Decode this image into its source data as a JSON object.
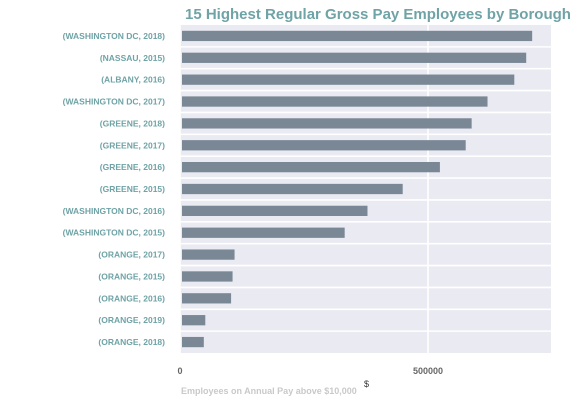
{
  "chart_data": {
    "type": "bar",
    "orientation": "horizontal",
    "title": "15 Highest Regular Gross Pay Employees by Borough",
    "xlabel": "Employees on Annual Pay above $10,000",
    "x_unit": "$",
    "ylabel": "",
    "xlim": [
      0,
      750000
    ],
    "xticks": [
      0,
      500000
    ],
    "xtick_labels": [
      "0",
      "500000"
    ],
    "grid": true,
    "bar_color": "#7a8896",
    "plot_background": "#eaeaf2",
    "categories": [
      "(WASHINGTON DC, 2018)",
      "(NASSAU, 2015)",
      "(ALBANY, 2016)",
      "(WASHINGTON DC, 2017)",
      "(GREENE, 2018)",
      "(GREENE, 2017)",
      "(GREENE, 2016)",
      "(GREENE, 2015)",
      "(WASHINGTON DC, 2016)",
      "(WASHINGTON DC, 2015)",
      "(ORANGE, 2017)",
      "(ORANGE, 2015)",
      "(ORANGE, 2016)",
      "(ORANGE, 2019)",
      "(ORANGE, 2018)"
    ],
    "values": [
      710000,
      698000,
      674000,
      620000,
      588000,
      576000,
      524000,
      449000,
      378000,
      332000,
      110000,
      106000,
      103000,
      51000,
      48000
    ]
  }
}
